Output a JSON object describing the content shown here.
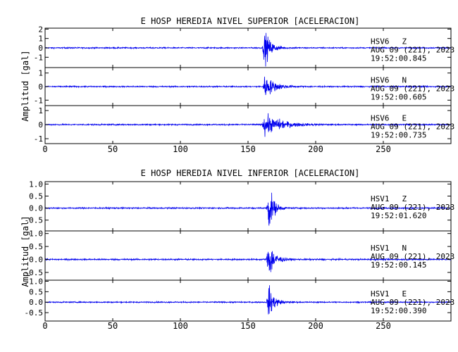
{
  "chart_data": [
    {
      "type": "line",
      "title": "E HOSP HEREDIA NIVEL SUPERIOR [ACELERACION]",
      "ylabel": "Amplitud [gal]",
      "xlim": [
        0,
        300
      ],
      "xticks": [
        0,
        50,
        100,
        150,
        200,
        250
      ],
      "grid": false,
      "line_color": "#0000ee",
      "panels": [
        {
          "channel": "HSV6 Z",
          "station": "HSV6",
          "component": "Z",
          "date": "AUG 09 (221), 2023",
          "time": "19:52:00.845",
          "ylim": [
            -2.1,
            2.1
          ],
          "yticks": [
            -1,
            0,
            1,
            2
          ],
          "event": {
            "onset": 160.5,
            "peak": 2.0,
            "noise": 0.07,
            "decay": 4.5
          }
        },
        {
          "channel": "HSV6 N",
          "station": "HSV6",
          "component": "N",
          "date": "AUG 09 (221), 2023",
          "time": "19:52:00.605",
          "ylim": [
            -1.4,
            1.4
          ],
          "yticks": [
            -1,
            0,
            1
          ],
          "event": {
            "onset": 160.5,
            "peak": 0.95,
            "noise": 0.05,
            "decay": 7
          }
        },
        {
          "channel": "HSV6 E",
          "station": "HSV6",
          "component": "E",
          "date": "AUG 09 (221), 2023",
          "time": "19:52:00.735",
          "ylim": [
            -1.35,
            1.35
          ],
          "yticks": [
            -1,
            0,
            1
          ],
          "event": {
            "onset": 160.5,
            "peak": 0.9,
            "noise": 0.05,
            "decay": 9
          }
        }
      ]
    },
    {
      "type": "line",
      "title": "E HOSP HEREDIA NIVEL INFERIOR [ACELERACION]",
      "ylabel": "Amplitud [gal]",
      "xlim": [
        0,
        300
      ],
      "xticks": [
        0,
        50,
        100,
        150,
        200,
        250
      ],
      "grid": false,
      "line_color": "#0000ee",
      "panels": [
        {
          "channel": "HSV1 Z",
          "station": "HSV1",
          "component": "Z",
          "date": "AUG 09 (221), 2023",
          "time": "19:52:01.620",
          "ylim": [
            -0.95,
            1.1
          ],
          "yticks": [
            -0.5,
            0.0,
            0.5,
            1.0
          ],
          "yticklabels": [
            "-0.5",
            "0.0",
            "0.5",
            "1.0"
          ],
          "event": {
            "onset": 163.5,
            "peak": 1.05,
            "noise": 0.03,
            "decay": 3.5
          }
        },
        {
          "channel": "HSV1 N",
          "station": "HSV1",
          "component": "N",
          "date": "AUG 09 (221), 2023",
          "time": "19:52:00.145",
          "ylim": [
            -0.8,
            1.1
          ],
          "yticks": [
            -0.5,
            0.0,
            0.5,
            1.0
          ],
          "yticklabels": [
            "-0.5",
            "0.0",
            "0.5",
            "1.0"
          ],
          "event": {
            "onset": 163.5,
            "peak": 0.9,
            "noise": 0.03,
            "decay": 4
          }
        },
        {
          "channel": "HSV1 E",
          "station": "HSV1",
          "component": "E",
          "date": "AUG 09 (221), 2023",
          "time": "19:52:00.390",
          "ylim": [
            -0.9,
            1.05
          ],
          "yticks": [
            -0.5,
            0.0,
            0.5,
            1.0
          ],
          "yticklabels": [
            "-0.5",
            "0.0",
            "0.5",
            "1.0"
          ],
          "event": {
            "onset": 163.5,
            "peak": 0.85,
            "noise": 0.03,
            "decay": 4
          }
        }
      ]
    }
  ]
}
